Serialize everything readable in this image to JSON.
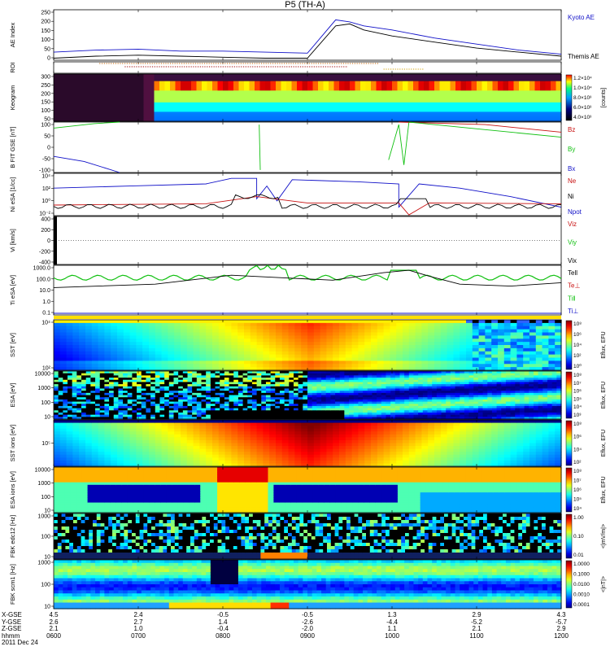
{
  "title": "P5 (TH-A)",
  "colors": {
    "blue": "#1010c8",
    "red": "#c81010",
    "green": "#10c010",
    "black": "#000000"
  },
  "panels": [
    {
      "id": "ae",
      "ylabel": "AE Index",
      "ticks": [
        "250",
        "200",
        "150",
        "100",
        "50",
        "0"
      ],
      "legend": [
        {
          "text": "Kyoto AE",
          "color": "#1010c8"
        },
        {
          "text": "Themis AE",
          "color": "#000000"
        }
      ]
    },
    {
      "id": "roi",
      "ylabel": "ROI",
      "ticks": [],
      "legend": []
    },
    {
      "id": "kp",
      "ylabel": "Keogram",
      "ticks": [
        "300",
        "250",
        "200",
        "150",
        "100",
        "50"
      ],
      "legend": [],
      "colorbar": {
        "label": "[counts]",
        "ticks": [
          "1.2×10⁴",
          "1.0×10⁴",
          "8.0×10³",
          "6.0×10³",
          "4.0×10³"
        ]
      }
    },
    {
      "id": "bfgm",
      "ylabel": "B FIT GSE [nT]",
      "ticks": [
        "100",
        "50",
        "0",
        "-50",
        "-100"
      ],
      "legend": [
        {
          "text": "Bz",
          "color": "#c81010"
        },
        {
          "text": "By",
          "color": "#10c010"
        },
        {
          "text": "Bx",
          "color": "#1010c8"
        }
      ]
    },
    {
      "id": "ni",
      "ylabel": "Ni eSA [1/cc]",
      "ticks": [
        "10⁴",
        "10²",
        "10⁰",
        "10⁻²"
      ],
      "legend": [
        {
          "text": "Ne",
          "color": "#c81010"
        },
        {
          "text": "Ni",
          "color": "#000000"
        },
        {
          "text": "Npot",
          "color": "#1010c8"
        }
      ]
    },
    {
      "id": "vi",
      "ylabel": "Vi [km/s]",
      "ticks": [
        "400",
        "200",
        "0",
        "-200",
        "-400"
      ],
      "legend": [
        {
          "text": "Viz",
          "color": "#c81010"
        },
        {
          "text": "Viy",
          "color": "#10c010"
        },
        {
          "text": "Vix",
          "color": "#000000"
        }
      ]
    },
    {
      "id": "ti",
      "ylabel": "Ti eSA [eV]",
      "ticks": [
        "1000.0",
        "100.0",
        "10.0",
        "1.0",
        "0.1"
      ],
      "legend": [
        {
          "text": "Tell",
          "color": "#000000"
        },
        {
          "text": "Te⊥",
          "color": "#c81010"
        },
        {
          "text": "Ti‖",
          "color": "#10c010"
        },
        {
          "text": "Ti⊥",
          "color": "#1010c8"
        }
      ]
    },
    {
      "id": "sste",
      "ylabel": "SST [eV]",
      "ticks": [
        "10⁴",
        "10²"
      ],
      "legend": [],
      "colorbar": {
        "label": "Eflux, EFU",
        "ticks": [
          "10⁸",
          "10⁶",
          "10⁴",
          "10²",
          "10⁰"
        ]
      }
    },
    {
      "id": "esae",
      "ylabel": "ESA [eV]",
      "ticks": [
        "10000",
        "1000",
        "100",
        "10"
      ],
      "legend": [],
      "colorbar": {
        "label": "Eflux, EFU",
        "ticks": [
          "10⁸",
          "10⁷",
          "10⁶",
          "10⁵",
          "10⁴",
          "10³"
        ]
      }
    },
    {
      "id": "ssti",
      "ylabel": "SST ions [eV]",
      "ticks": [
        "10⁵"
      ],
      "legend": [],
      "colorbar": {
        "label": "Eflux, EFU",
        "ticks": [
          "10⁸",
          "10⁶",
          "10⁴",
          "10²"
        ]
      }
    },
    {
      "id": "esai",
      "ylabel": "ESA ions [eV]",
      "ticks": [
        "10000",
        "1000",
        "100",
        "10"
      ],
      "legend": [],
      "colorbar": {
        "label": "Eflux, EFU",
        "ticks": [
          "10⁸",
          "10⁷",
          "10⁶",
          "10⁵",
          "10⁴"
        ]
      }
    },
    {
      "id": "fbk1",
      "ylabel": "FBK edc12 [Hz]",
      "ticks": [
        "1000",
        "100",
        "10"
      ],
      "legend": [],
      "colorbar": {
        "label": "<|mV/m|>",
        "ticks": [
          "1.00",
          "0.10",
          "0.01"
        ]
      }
    },
    {
      "id": "fbk2",
      "ylabel": "FBK scm1 [Hz]",
      "ticks": [
        "1000",
        "100",
        "10"
      ],
      "legend": [],
      "colorbar": {
        "label": "<|nT|>",
        "ticks": [
          "1.0000",
          "0.1000",
          "0.0100",
          "0.0010",
          "0.0001"
        ]
      }
    }
  ],
  "footer": {
    "rows": [
      {
        "label": "X-GSE",
        "values": [
          "4.5",
          "2.4",
          "-0.5",
          "-0.5",
          "1.3",
          "2.9",
          "4.3"
        ]
      },
      {
        "label": "Y-GSE",
        "values": [
          "2.6",
          "2.7",
          "1.4",
          "-2.6",
          "-4.4",
          "-5.2",
          "-5.7"
        ]
      },
      {
        "label": "Z-GSE",
        "values": [
          "2.1",
          "1.0",
          "-0.4",
          "-2.0",
          "1.1",
          "2.1",
          "2.9"
        ]
      },
      {
        "label": "hhmm",
        "values": [
          "0600",
          "0700",
          "0800",
          "0900",
          "1000",
          "1100",
          "1200"
        ]
      }
    ],
    "date": "2011 Dec 24"
  },
  "chart_data": {
    "type": "line",
    "time_range": [
      "0600",
      "1200"
    ],
    "ae": {
      "x": [
        "0600",
        "0630",
        "0700",
        "0730",
        "0800",
        "0830",
        "0900",
        "0920",
        "0930",
        "0940",
        "1000",
        "1030",
        "1100",
        "1130",
        "1200"
      ],
      "series": [
        {
          "name": "Kyoto AE",
          "values": [
            40,
            50,
            55,
            45,
            45,
            40,
            35,
            200,
            190,
            170,
            150,
            110,
            80,
            50,
            30
          ]
        },
        {
          "name": "Themis AE",
          "values": [
            10,
            20,
            25,
            20,
            15,
            10,
            10,
            170,
            180,
            150,
            120,
            90,
            60,
            40,
            20
          ]
        }
      ],
      "ylim": [
        0,
        250
      ]
    }
  }
}
